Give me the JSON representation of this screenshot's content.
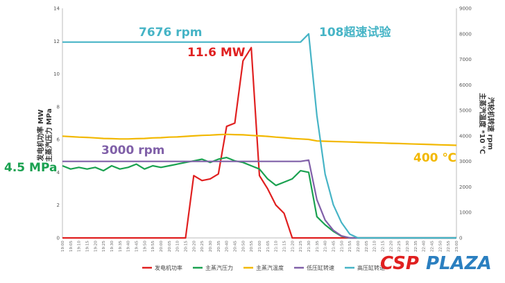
{
  "chart_data": {
    "type": "line",
    "x": [
      "19:00",
      "19:05",
      "19:10",
      "19:15",
      "19:20",
      "19:25",
      "19:30",
      "19:35",
      "19:40",
      "19:45",
      "19:50",
      "19:55",
      "20:00",
      "20:05",
      "20:10",
      "20:15",
      "20:20",
      "20:25",
      "20:30",
      "20:35",
      "20:40",
      "20:45",
      "20:50",
      "20:55",
      "21:00",
      "21:05",
      "21:10",
      "21:15",
      "21:20",
      "21:25",
      "21:30",
      "21:35",
      "21:40",
      "21:45",
      "21:50",
      "21:55",
      "22:00",
      "22:05",
      "22:10",
      "22:15",
      "22:20",
      "22:25",
      "22:30",
      "22:35",
      "22:40",
      "22:45",
      "22:50",
      "22:55",
      "23:00"
    ],
    "ylabel_left": "发电机功率 MW\n主蒸汽压力 MPa",
    "ylabel_right": "主蒸汽温度 *10 ℃\n汽轮机转速 rpm",
    "ylim_left": [
      0,
      14
    ],
    "yticks_left": [
      0,
      2,
      4,
      6,
      8,
      10,
      12,
      14
    ],
    "ylim_right": [
      0,
      9000
    ],
    "yticks_right": [
      0,
      1000,
      2000,
      3000,
      4000,
      5000,
      6000,
      7000,
      8000,
      9000
    ],
    "grid": false,
    "legend_position": "bottom",
    "series": [
      {
        "name": "发电机功率",
        "axis": "left",
        "color": "#e02020",
        "values": [
          0,
          0,
          0,
          0,
          0,
          0,
          0,
          0,
          0,
          0,
          0,
          0,
          0,
          0,
          0,
          0,
          3.8,
          3.5,
          3.6,
          3.9,
          6.8,
          7.0,
          10.8,
          11.6,
          3.8,
          3.0,
          2.0,
          1.5,
          0,
          0,
          0,
          0,
          0,
          0,
          0,
          0,
          0,
          0,
          0,
          0,
          0,
          0,
          0,
          0,
          0,
          0,
          0,
          0,
          0
        ]
      },
      {
        "name": "主蒸汽压力",
        "axis": "left",
        "color": "#1aa150",
        "values": [
          4.4,
          4.2,
          4.3,
          4.2,
          4.3,
          4.1,
          4.4,
          4.2,
          4.3,
          4.5,
          4.2,
          4.4,
          4.3,
          4.4,
          4.5,
          4.6,
          4.7,
          4.8,
          4.6,
          4.8,
          4.9,
          4.7,
          4.6,
          4.4,
          4.2,
          3.6,
          3.2,
          3.4,
          3.6,
          4.1,
          4.0,
          1.3,
          0.8,
          0.4,
          0.1,
          0,
          0,
          0,
          0,
          0,
          0,
          0,
          0,
          0,
          0,
          0,
          0,
          0,
          0
        ]
      },
      {
        "name": "主蒸汽温度",
        "axis": "right",
        "color": "#f2b800",
        "values": [
          3990,
          3970,
          3950,
          3940,
          3920,
          3900,
          3890,
          3880,
          3880,
          3890,
          3900,
          3920,
          3930,
          3950,
          3960,
          3980,
          4000,
          4020,
          4030,
          4050,
          4060,
          4050,
          4040,
          4020,
          4000,
          3980,
          3950,
          3930,
          3900,
          3880,
          3860,
          3800,
          3790,
          3780,
          3770,
          3760,
          3750,
          3740,
          3730,
          3720,
          3710,
          3700,
          3690,
          3680,
          3670,
          3660,
          3650,
          3640,
          3630
        ]
      },
      {
        "name": "低压缸转速",
        "axis": "right",
        "color": "#8060a8",
        "values": [
          3000,
          3000,
          3000,
          3000,
          3000,
          3000,
          3000,
          3000,
          3000,
          3000,
          3000,
          3000,
          3000,
          3000,
          3000,
          3000,
          3000,
          3000,
          3000,
          3000,
          3000,
          3000,
          3000,
          3000,
          3000,
          3000,
          3000,
          3000,
          3000,
          3000,
          3050,
          1500,
          700,
          300,
          80,
          0,
          0,
          0,
          0,
          0,
          0,
          0,
          0,
          0,
          0,
          0,
          0,
          0,
          0
        ]
      },
      {
        "name": "高压缸转速",
        "axis": "right",
        "color": "#46b4c6",
        "values": [
          7676,
          7676,
          7676,
          7676,
          7676,
          7676,
          7676,
          7676,
          7676,
          7676,
          7676,
          7676,
          7676,
          7676,
          7676,
          7676,
          7676,
          7676,
          7676,
          7676,
          7676,
          7676,
          7676,
          7676,
          7676,
          7676,
          7676,
          7676,
          7676,
          7676,
          8000,
          4800,
          2500,
          1300,
          600,
          150,
          0,
          0,
          0,
          0,
          0,
          0,
          0,
          0,
          0,
          0,
          0,
          0,
          0
        ]
      }
    ]
  },
  "annotations": {
    "top_speed": "7676 rpm",
    "overspeed": "108超速试验",
    "max_power": "11.6 MW",
    "lp_speed": "3000 rpm",
    "pressure": "4.5 MPa",
    "temperature": "400 ℃"
  },
  "watermark": {
    "a": "CSP",
    "b": "PLAZA",
    "color_a": "#e02020",
    "color_b": "#2a7fc0"
  }
}
